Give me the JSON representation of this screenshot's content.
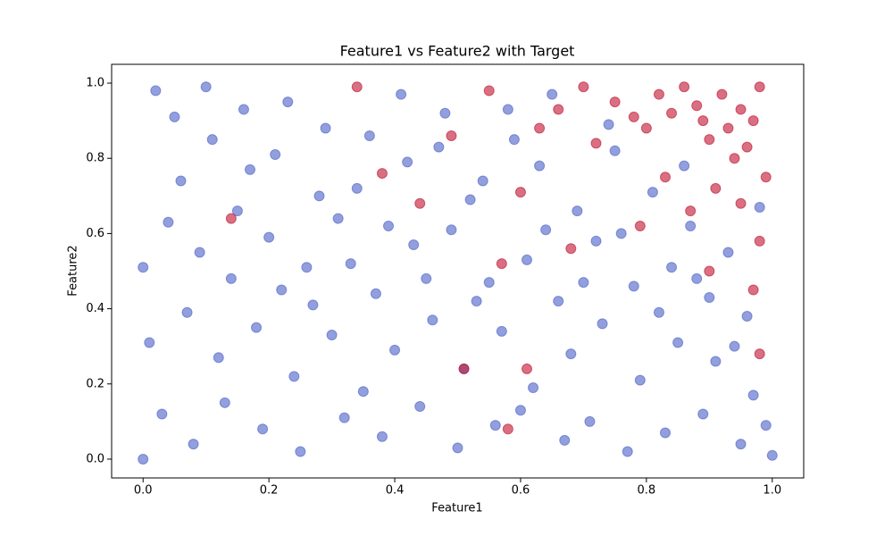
{
  "chart_data": {
    "type": "scatter",
    "title": "Feature1 vs Feature2 with Target",
    "x_label": "Feature1",
    "y_label": "Feature2",
    "xlim": [
      -0.05,
      1.05
    ],
    "ylim": [
      -0.05,
      1.05
    ],
    "xticks": [
      {
        "value": 0,
        "label": "0.0"
      },
      0.2,
      0.4,
      0.6,
      0.8,
      {
        "value": 1,
        "label": "1.0"
      }
    ],
    "yticks": [
      {
        "value": 0,
        "label": "0.0"
      },
      0.2,
      0.4,
      0.6,
      0.8,
      {
        "value": 1,
        "label": "1.0"
      }
    ],
    "series": [
      {
        "color": "#4a5fc6",
        "x": [
          0.02,
          0.05,
          0.11,
          0.17,
          0.23,
          0.29,
          0.34,
          0.41,
          0.47,
          0.52,
          0.58,
          0.63,
          0.69,
          0.74,
          0.81,
          0.87,
          0.93,
          0.98,
          0.04,
          0.09,
          0.14,
          0.2,
          0.26,
          0.31,
          0.37,
          0.43,
          0.49,
          0.55,
          0.61,
          0.66,
          0.72,
          0.78,
          0.84,
          0.9,
          0.96,
          0.01,
          0.07,
          0.12,
          0.18,
          0.24,
          0.3,
          0.35,
          0.4,
          0.46,
          0.51,
          0.57,
          0.62,
          0.68,
          0.73,
          0.79,
          0.85,
          0.91,
          0.97,
          0.03,
          0.08,
          0.13,
          0.19,
          0.25,
          0.32,
          0.38,
          0.44,
          0.5,
          0.56,
          0.6,
          0.67,
          0.71,
          0.77,
          0.83,
          0.89,
          0.95,
          0.99,
          0.06,
          0.15,
          0.21,
          0.28,
          0.36,
          0.42,
          0.48,
          0.54,
          0.59,
          0.65,
          0.1,
          0.16,
          0.27,
          0.33,
          0.39,
          0.45,
          0.53,
          0.64,
          0.7,
          0.76,
          0.82,
          0.88,
          0.94,
          0.0,
          0.22,
          0.0,
          1.0,
          0.75,
          0.86
        ],
        "values": [
          0.98,
          0.91,
          0.85,
          0.77,
          0.95,
          0.88,
          0.72,
          0.97,
          0.83,
          0.69,
          0.93,
          0.78,
          0.66,
          0.89,
          0.71,
          0.62,
          0.55,
          0.67,
          0.63,
          0.55,
          0.48,
          0.59,
          0.51,
          0.64,
          0.44,
          0.57,
          0.61,
          0.47,
          0.53,
          0.42,
          0.58,
          0.46,
          0.51,
          0.43,
          0.38,
          0.31,
          0.39,
          0.27,
          0.35,
          0.22,
          0.33,
          0.18,
          0.29,
          0.37,
          0.24,
          0.34,
          0.19,
          0.28,
          0.36,
          0.21,
          0.31,
          0.26,
          0.17,
          0.12,
          0.04,
          0.15,
          0.08,
          0.02,
          0.11,
          0.06,
          0.14,
          0.03,
          0.09,
          0.13,
          0.05,
          0.1,
          0.02,
          0.07,
          0.12,
          0.04,
          0.09,
          0.74,
          0.66,
          0.81,
          0.7,
          0.86,
          0.79,
          0.92,
          0.74,
          0.85,
          0.97,
          0.99,
          0.93,
          0.41,
          0.52,
          0.62,
          0.48,
          0.42,
          0.61,
          0.47,
          0.6,
          0.39,
          0.48,
          0.3,
          0.51,
          0.45,
          0.0,
          0.01,
          0.82,
          0.78
        ]
      },
      {
        "color": "#c0102e",
        "x": [
          0.34,
          0.38,
          0.44,
          0.49,
          0.55,
          0.6,
          0.63,
          0.66,
          0.7,
          0.72,
          0.75,
          0.78,
          0.8,
          0.82,
          0.84,
          0.86,
          0.88,
          0.89,
          0.9,
          0.92,
          0.93,
          0.94,
          0.95,
          0.96,
          0.97,
          0.98,
          0.99,
          0.91,
          0.87,
          0.83,
          0.79,
          0.95,
          0.98,
          0.9,
          0.97,
          0.68,
          0.57,
          0.51,
          0.61,
          0.14,
          0.58,
          0.98
        ],
        "values": [
          0.99,
          0.76,
          0.68,
          0.86,
          0.98,
          0.71,
          0.88,
          0.93,
          0.99,
          0.84,
          0.95,
          0.91,
          0.88,
          0.97,
          0.92,
          0.99,
          0.94,
          0.9,
          0.85,
          0.97,
          0.88,
          0.8,
          0.93,
          0.83,
          0.9,
          0.99,
          0.75,
          0.72,
          0.66,
          0.75,
          0.62,
          0.68,
          0.58,
          0.5,
          0.45,
          0.56,
          0.52,
          0.24,
          0.24,
          0.64,
          0.08,
          0.28
        ]
      }
    ]
  }
}
